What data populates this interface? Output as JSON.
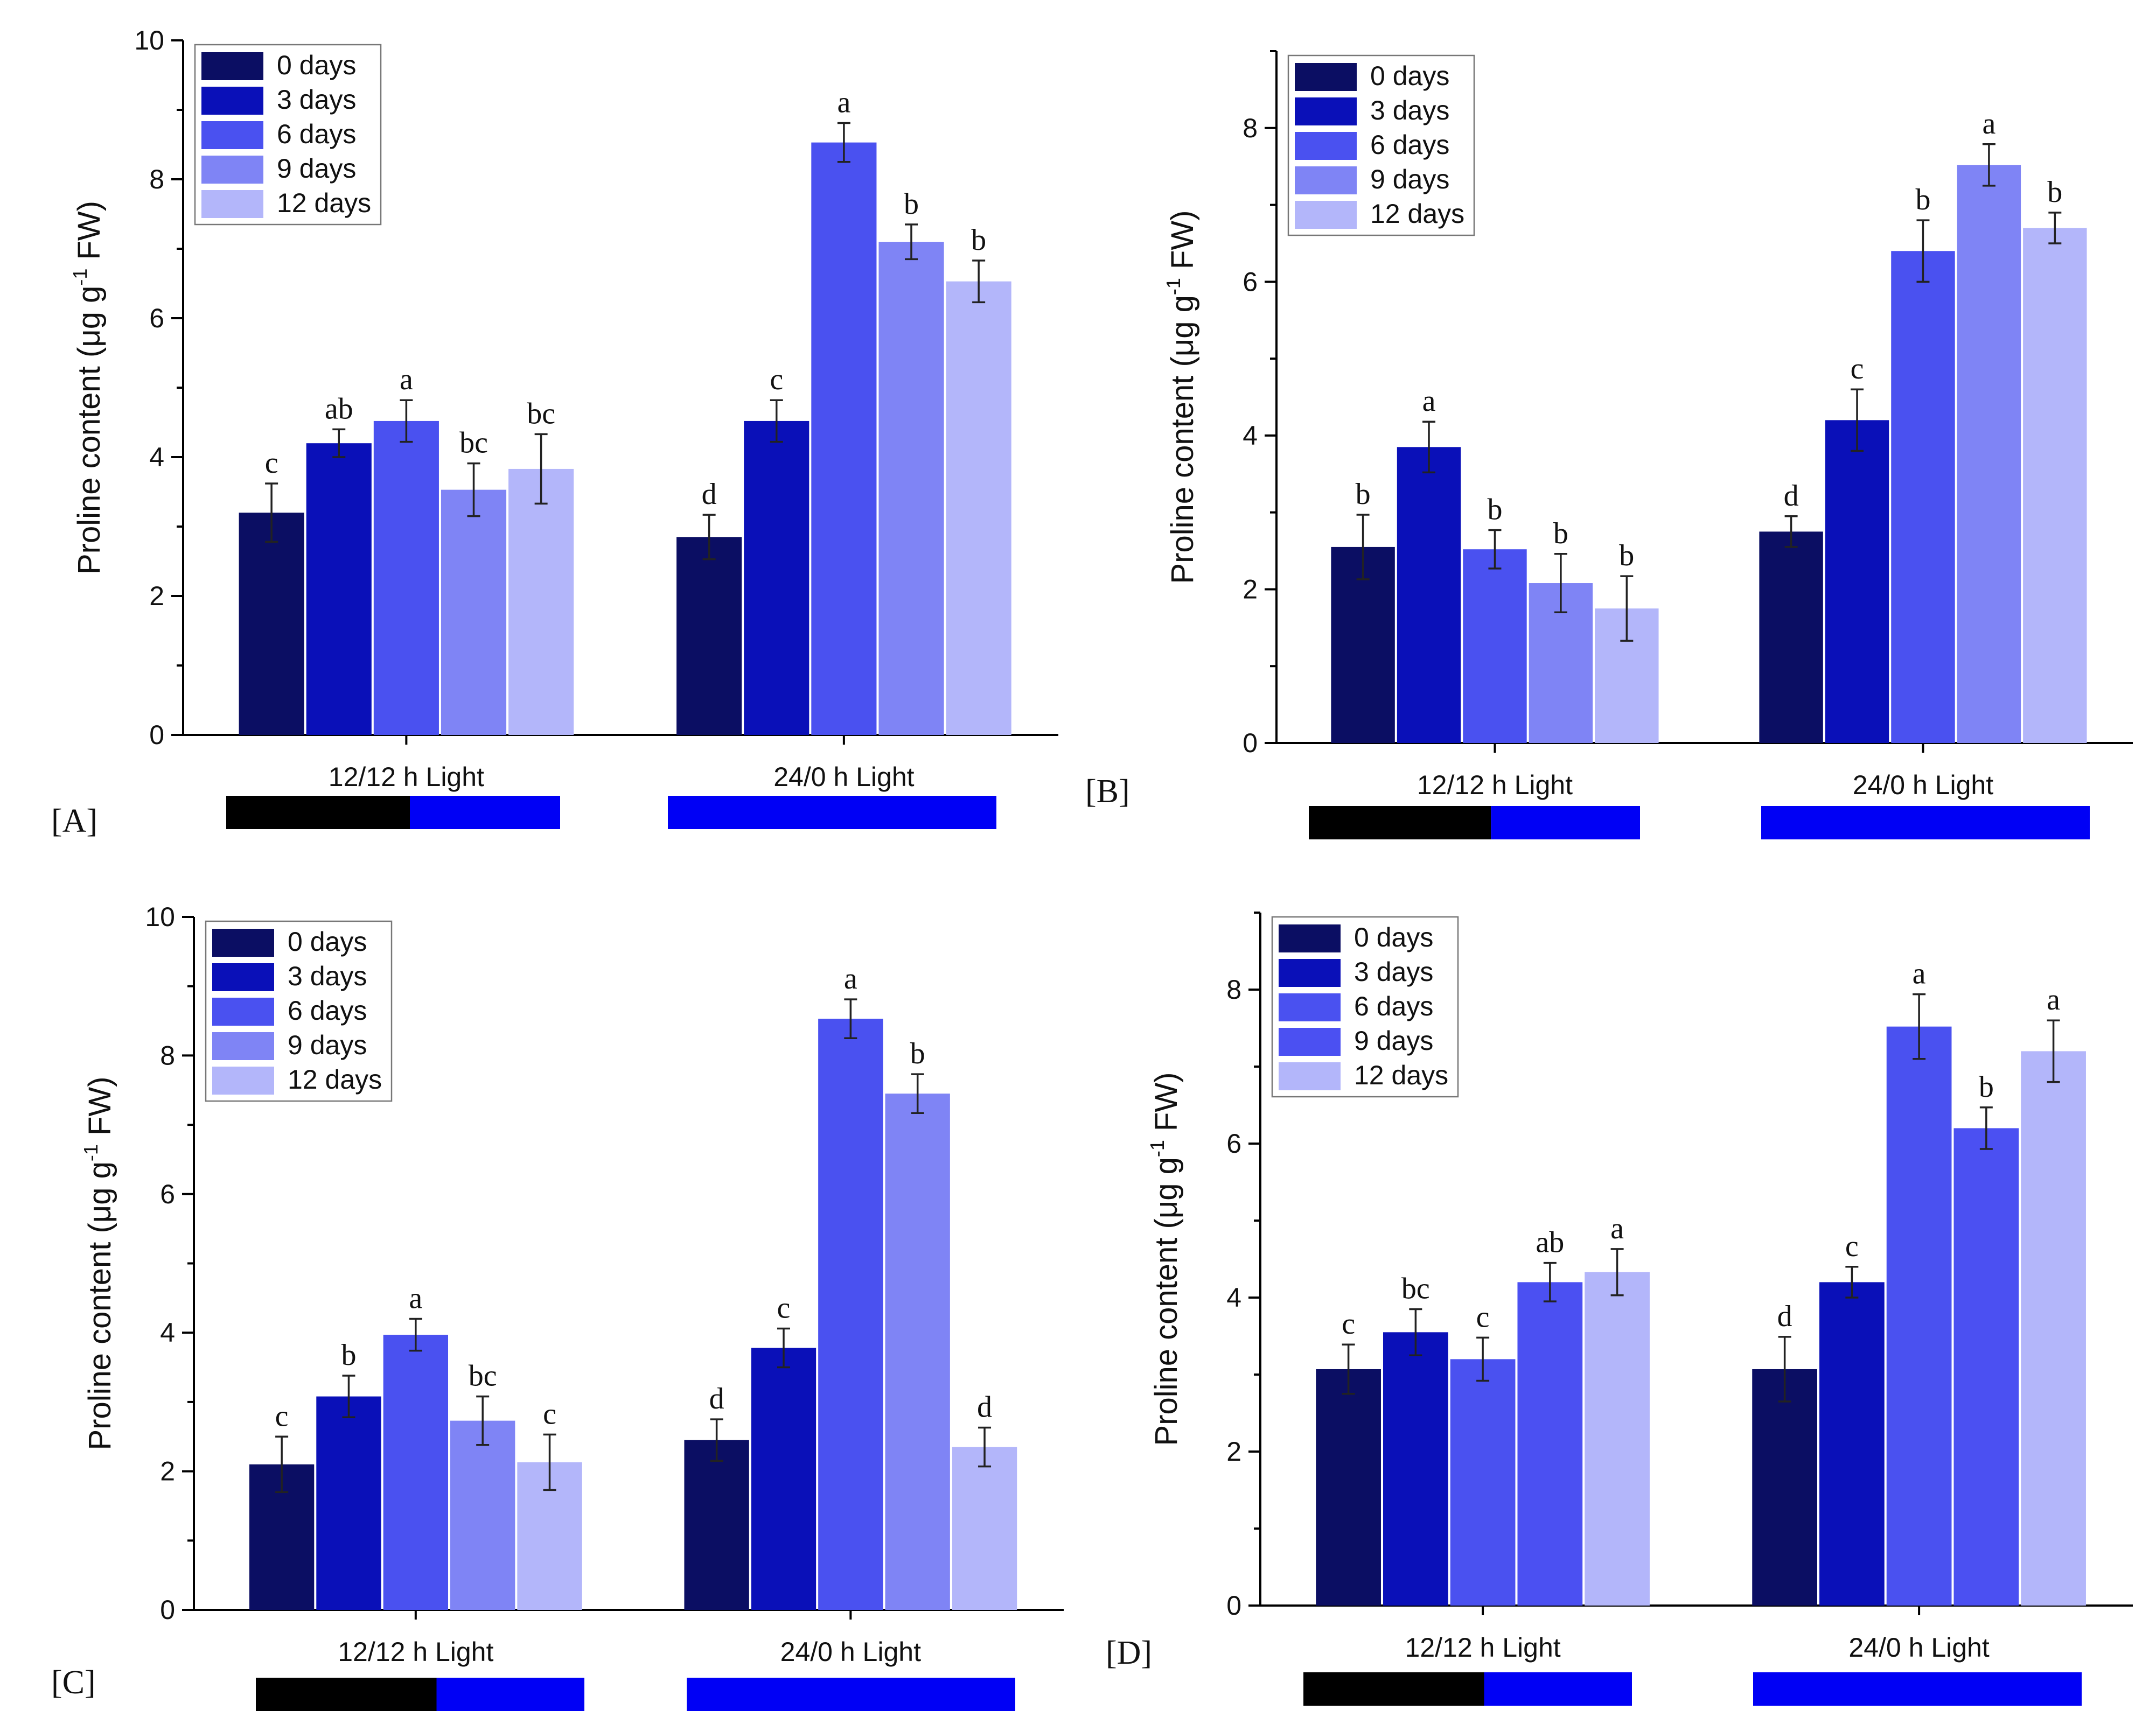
{
  "chart_data": [
    {
      "panel_label": "[A]",
      "type": "bar",
      "ylabel": "Proline content (μg g⁻¹ FW)",
      "ylabel_main": "Proline content (μg g",
      "ylabel_sup": "-1",
      "ylabel_tail": " FW)",
      "ylim": [
        0,
        10
      ],
      "yticks": [
        "0",
        "2",
        "4",
        "6",
        "8",
        "10"
      ],
      "categories": [
        "12/12 h Light",
        "24/0 h Light"
      ],
      "legend": [
        "0 days",
        "3 days",
        "6 days",
        "9 days",
        "12 days"
      ],
      "legend_position": "top-left",
      "colors": [
        "#0b0e63",
        "#0a10b8",
        "#4a51f0",
        "#7f84f5",
        "#b3b6fa"
      ],
      "series": [
        {
          "name": "0 days",
          "values": [
            3.2,
            2.85
          ],
          "errors": [
            0.42,
            0.32
          ],
          "letters": [
            "c",
            "d"
          ]
        },
        {
          "name": "3 days",
          "values": [
            4.2,
            4.52
          ],
          "errors": [
            0.2,
            0.3
          ],
          "letters": [
            "ab",
            "c"
          ]
        },
        {
          "name": "6 days",
          "values": [
            4.52,
            8.53
          ],
          "errors": [
            0.3,
            0.28
          ],
          "letters": [
            "a",
            "a"
          ]
        },
        {
          "name": "9 days",
          "values": [
            3.53,
            7.1
          ],
          "errors": [
            0.38,
            0.25
          ],
          "letters": [
            "bc",
            "b"
          ]
        },
        {
          "name": "12 days",
          "values": [
            3.83,
            6.53
          ],
          "errors": [
            0.5,
            0.3
          ],
          "letters": [
            "bc",
            "b"
          ]
        }
      ],
      "photoperiod_bars": [
        {
          "category": "12/12 h Light",
          "dark": 0.55,
          "light": 0.45
        },
        {
          "category": "24/0 h Light",
          "dark": 0,
          "light": 1
        }
      ]
    },
    {
      "panel_label": "[B]",
      "type": "bar",
      "ylabel": "Proline content (μg g⁻¹ FW)",
      "ylabel_main": "Proline content (μg g",
      "ylabel_sup": "-1",
      "ylabel_tail": " FW)",
      "ylim": [
        0,
        9
      ],
      "yticks": [
        "0",
        "2",
        "4",
        "6",
        "8"
      ],
      "categories": [
        "12/12 h Light",
        "24/0 h Light"
      ],
      "legend": [
        "0 days",
        "3 days",
        "6 days",
        "9 days",
        "12 days"
      ],
      "legend_position": "top-left",
      "colors": [
        "#0b0e63",
        "#0a10b8",
        "#4a51f0",
        "#7f84f5",
        "#b3b6fa"
      ],
      "series": [
        {
          "name": "0 days",
          "values": [
            2.55,
            2.75
          ],
          "errors": [
            0.42,
            0.2
          ],
          "letters": [
            "b",
            "d"
          ]
        },
        {
          "name": "3 days",
          "values": [
            3.85,
            4.2
          ],
          "errors": [
            0.33,
            0.4
          ],
          "letters": [
            "a",
            "c"
          ]
        },
        {
          "name": "6 days",
          "values": [
            2.52,
            6.4
          ],
          "errors": [
            0.25,
            0.4
          ],
          "letters": [
            "b",
            "b"
          ]
        },
        {
          "name": "9 days",
          "values": [
            2.08,
            7.52
          ],
          "errors": [
            0.38,
            0.27
          ],
          "letters": [
            "b",
            "a"
          ]
        },
        {
          "name": "12 days",
          "values": [
            1.75,
            6.7
          ],
          "errors": [
            0.42,
            0.2
          ],
          "letters": [
            "b",
            "b"
          ]
        }
      ],
      "photoperiod_bars": [
        {
          "category": "12/12 h Light",
          "dark": 0.55,
          "light": 0.45
        },
        {
          "category": "24/0 h Light",
          "dark": 0,
          "light": 1
        }
      ]
    },
    {
      "panel_label": "[C]",
      "type": "bar",
      "ylabel": "Proline content (μg g⁻¹ FW)",
      "ylabel_main": "Proline content (μg g",
      "ylabel_sup": "-1",
      "ylabel_tail": " FW)",
      "ylim": [
        0,
        10
      ],
      "yticks": [
        "0",
        "2",
        "4",
        "6",
        "8",
        "10"
      ],
      "categories": [
        "12/12 h Light",
        "24/0 h Light"
      ],
      "legend": [
        "0 days",
        "3 days",
        "6 days",
        "9 days",
        "12 days"
      ],
      "legend_position": "top-left",
      "colors": [
        "#0b0e63",
        "#0a10b8",
        "#4a51f0",
        "#7f84f5",
        "#b3b6fa"
      ],
      "series": [
        {
          "name": "0 days",
          "values": [
            2.1,
            2.45
          ],
          "errors": [
            0.4,
            0.3
          ],
          "letters": [
            "c",
            "d"
          ]
        },
        {
          "name": "3 days",
          "values": [
            3.08,
            3.78
          ],
          "errors": [
            0.3,
            0.28
          ],
          "letters": [
            "b",
            "c"
          ]
        },
        {
          "name": "6 days",
          "values": [
            3.97,
            8.53
          ],
          "errors": [
            0.23,
            0.28
          ],
          "letters": [
            "a",
            "a"
          ]
        },
        {
          "name": "9 days",
          "values": [
            2.73,
            7.45
          ],
          "errors": [
            0.35,
            0.28
          ],
          "letters": [
            "bc",
            "b"
          ]
        },
        {
          "name": "12 days",
          "values": [
            2.13,
            2.35
          ],
          "errors": [
            0.4,
            0.28
          ],
          "letters": [
            "c",
            "d"
          ]
        }
      ],
      "photoperiod_bars": [
        {
          "category": "12/12 h Light",
          "dark": 0.55,
          "light": 0.45
        },
        {
          "category": "24/0 h Light",
          "dark": 0,
          "light": 1
        }
      ]
    },
    {
      "panel_label": "[D]",
      "type": "bar",
      "ylabel": "Proline content (μg g⁻¹ FW)",
      "ylabel_main": "Proline content (μg g",
      "ylabel_sup": "-1",
      "ylabel_tail": " FW)",
      "ylim": [
        0,
        9
      ],
      "yticks": [
        "0",
        "2",
        "4",
        "6",
        "8"
      ],
      "categories": [
        "12/12 h Light",
        "24/0 h Light"
      ],
      "legend": [
        "0 days",
        "3 days",
        "6 days",
        "9 days",
        "12 days"
      ],
      "legend_position": "top-left",
      "colors": [
        "#0b0e63",
        "#0a10b8",
        "#4a51f0",
        "#4b50f2",
        "#b3b6fa"
      ],
      "series": [
        {
          "name": "0 days",
          "values": [
            3.07,
            3.07
          ],
          "errors": [
            0.32,
            0.42
          ],
          "letters": [
            "c",
            "d"
          ]
        },
        {
          "name": "3 days",
          "values": [
            3.55,
            4.2
          ],
          "errors": [
            0.3,
            0.2
          ],
          "letters": [
            "bc",
            "c"
          ]
        },
        {
          "name": "6 days",
          "values": [
            3.2,
            7.52
          ],
          "errors": [
            0.28,
            0.42
          ],
          "letters": [
            "c",
            "a"
          ]
        },
        {
          "name": "9 days",
          "values": [
            4.2,
            6.2
          ],
          "errors": [
            0.25,
            0.27
          ],
          "letters": [
            "ab",
            "b"
          ]
        },
        {
          "name": "12 days",
          "values": [
            4.33,
            7.2
          ],
          "errors": [
            0.3,
            0.4
          ],
          "letters": [
            "a",
            "a"
          ]
        }
      ],
      "photoperiod_bars": [
        {
          "category": "12/12 h Light",
          "dark": 0.55,
          "light": 0.45
        },
        {
          "category": "24/0 h Light",
          "dark": 0,
          "light": 1
        }
      ]
    }
  ]
}
